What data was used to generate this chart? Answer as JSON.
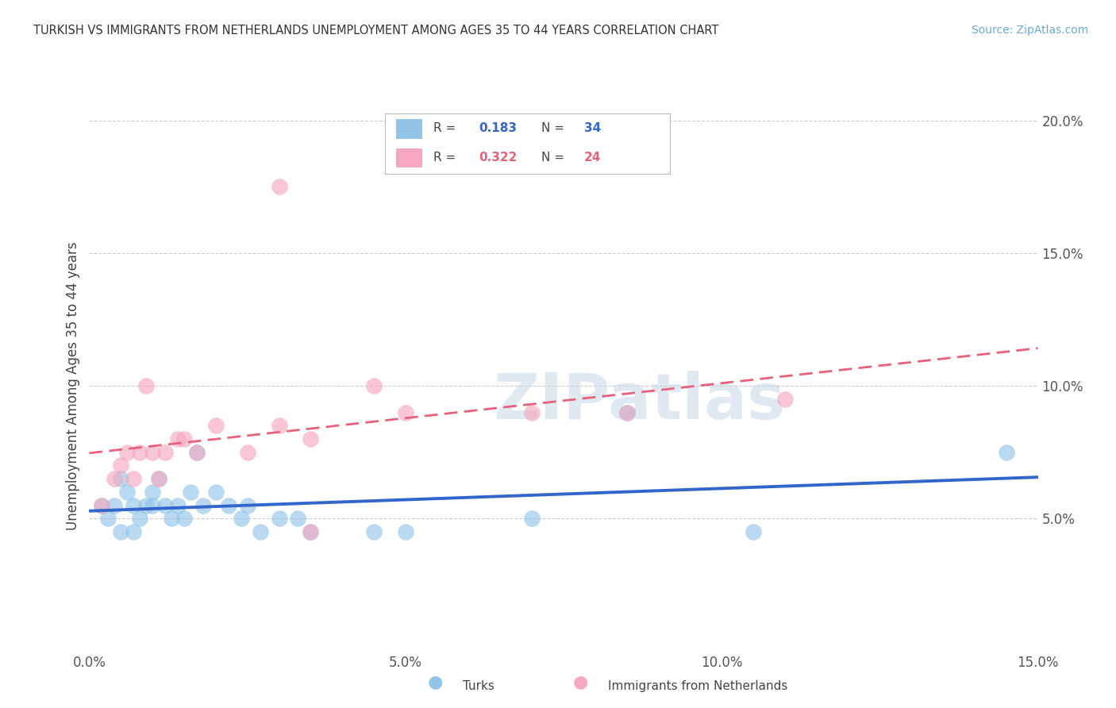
{
  "title": "TURKISH VS IMMIGRANTS FROM NETHERLANDS UNEMPLOYMENT AMONG AGES 35 TO 44 YEARS CORRELATION CHART",
  "source": "Source: ZipAtlas.com",
  "ylabel": "Unemployment Among Ages 35 to 44 years",
  "xlim": [
    0.0,
    15.0
  ],
  "ylim": [
    0.0,
    20.0
  ],
  "ylabel_vals": [
    5.0,
    10.0,
    15.0,
    20.0
  ],
  "xlabel_vals": [
    0.0,
    5.0,
    10.0,
    15.0
  ],
  "legend_blue_label": "Turks",
  "legend_pink_label": "Immigrants from Netherlands",
  "blue_R": "0.183",
  "blue_N": "34",
  "pink_R": "0.322",
  "pink_N": "24",
  "blue_color": "#92C5E8",
  "pink_color": "#F5A8C0",
  "blue_line_color": "#3366CC",
  "pink_line_color": "#E8607A",
  "watermark": "ZIPatlas",
  "turks_x": [
    0.2,
    0.3,
    0.4,
    0.5,
    0.5,
    0.6,
    0.7,
    0.7,
    0.8,
    0.9,
    1.0,
    1.0,
    1.1,
    1.2,
    1.3,
    1.4,
    1.5,
    1.6,
    1.7,
    1.8,
    2.0,
    2.2,
    2.4,
    2.5,
    2.7,
    3.0,
    3.3,
    3.5,
    4.5,
    5.0,
    7.0,
    8.5,
    10.5,
    14.5
  ],
  "turks_y": [
    5.5,
    5.0,
    5.5,
    6.5,
    4.5,
    6.0,
    5.5,
    4.5,
    5.0,
    5.5,
    6.0,
    5.5,
    6.5,
    5.5,
    5.0,
    5.5,
    5.0,
    6.0,
    7.5,
    5.5,
    6.0,
    5.5,
    5.0,
    5.5,
    4.5,
    5.0,
    5.0,
    4.5,
    4.5,
    4.5,
    5.0,
    9.0,
    4.5,
    7.5
  ],
  "neth_x": [
    0.2,
    0.4,
    0.5,
    0.6,
    0.7,
    0.8,
    0.9,
    1.0,
    1.1,
    1.2,
    1.4,
    1.5,
    1.7,
    2.0,
    2.5,
    3.0,
    3.5,
    4.5,
    5.0,
    7.0,
    8.5,
    3.0,
    11.0,
    3.5
  ],
  "neth_y": [
    5.5,
    6.5,
    7.0,
    7.5,
    6.5,
    7.5,
    10.0,
    7.5,
    6.5,
    7.5,
    8.0,
    8.0,
    7.5,
    8.5,
    7.5,
    8.5,
    8.0,
    10.0,
    9.0,
    9.0,
    9.0,
    17.5,
    9.5,
    4.5
  ]
}
